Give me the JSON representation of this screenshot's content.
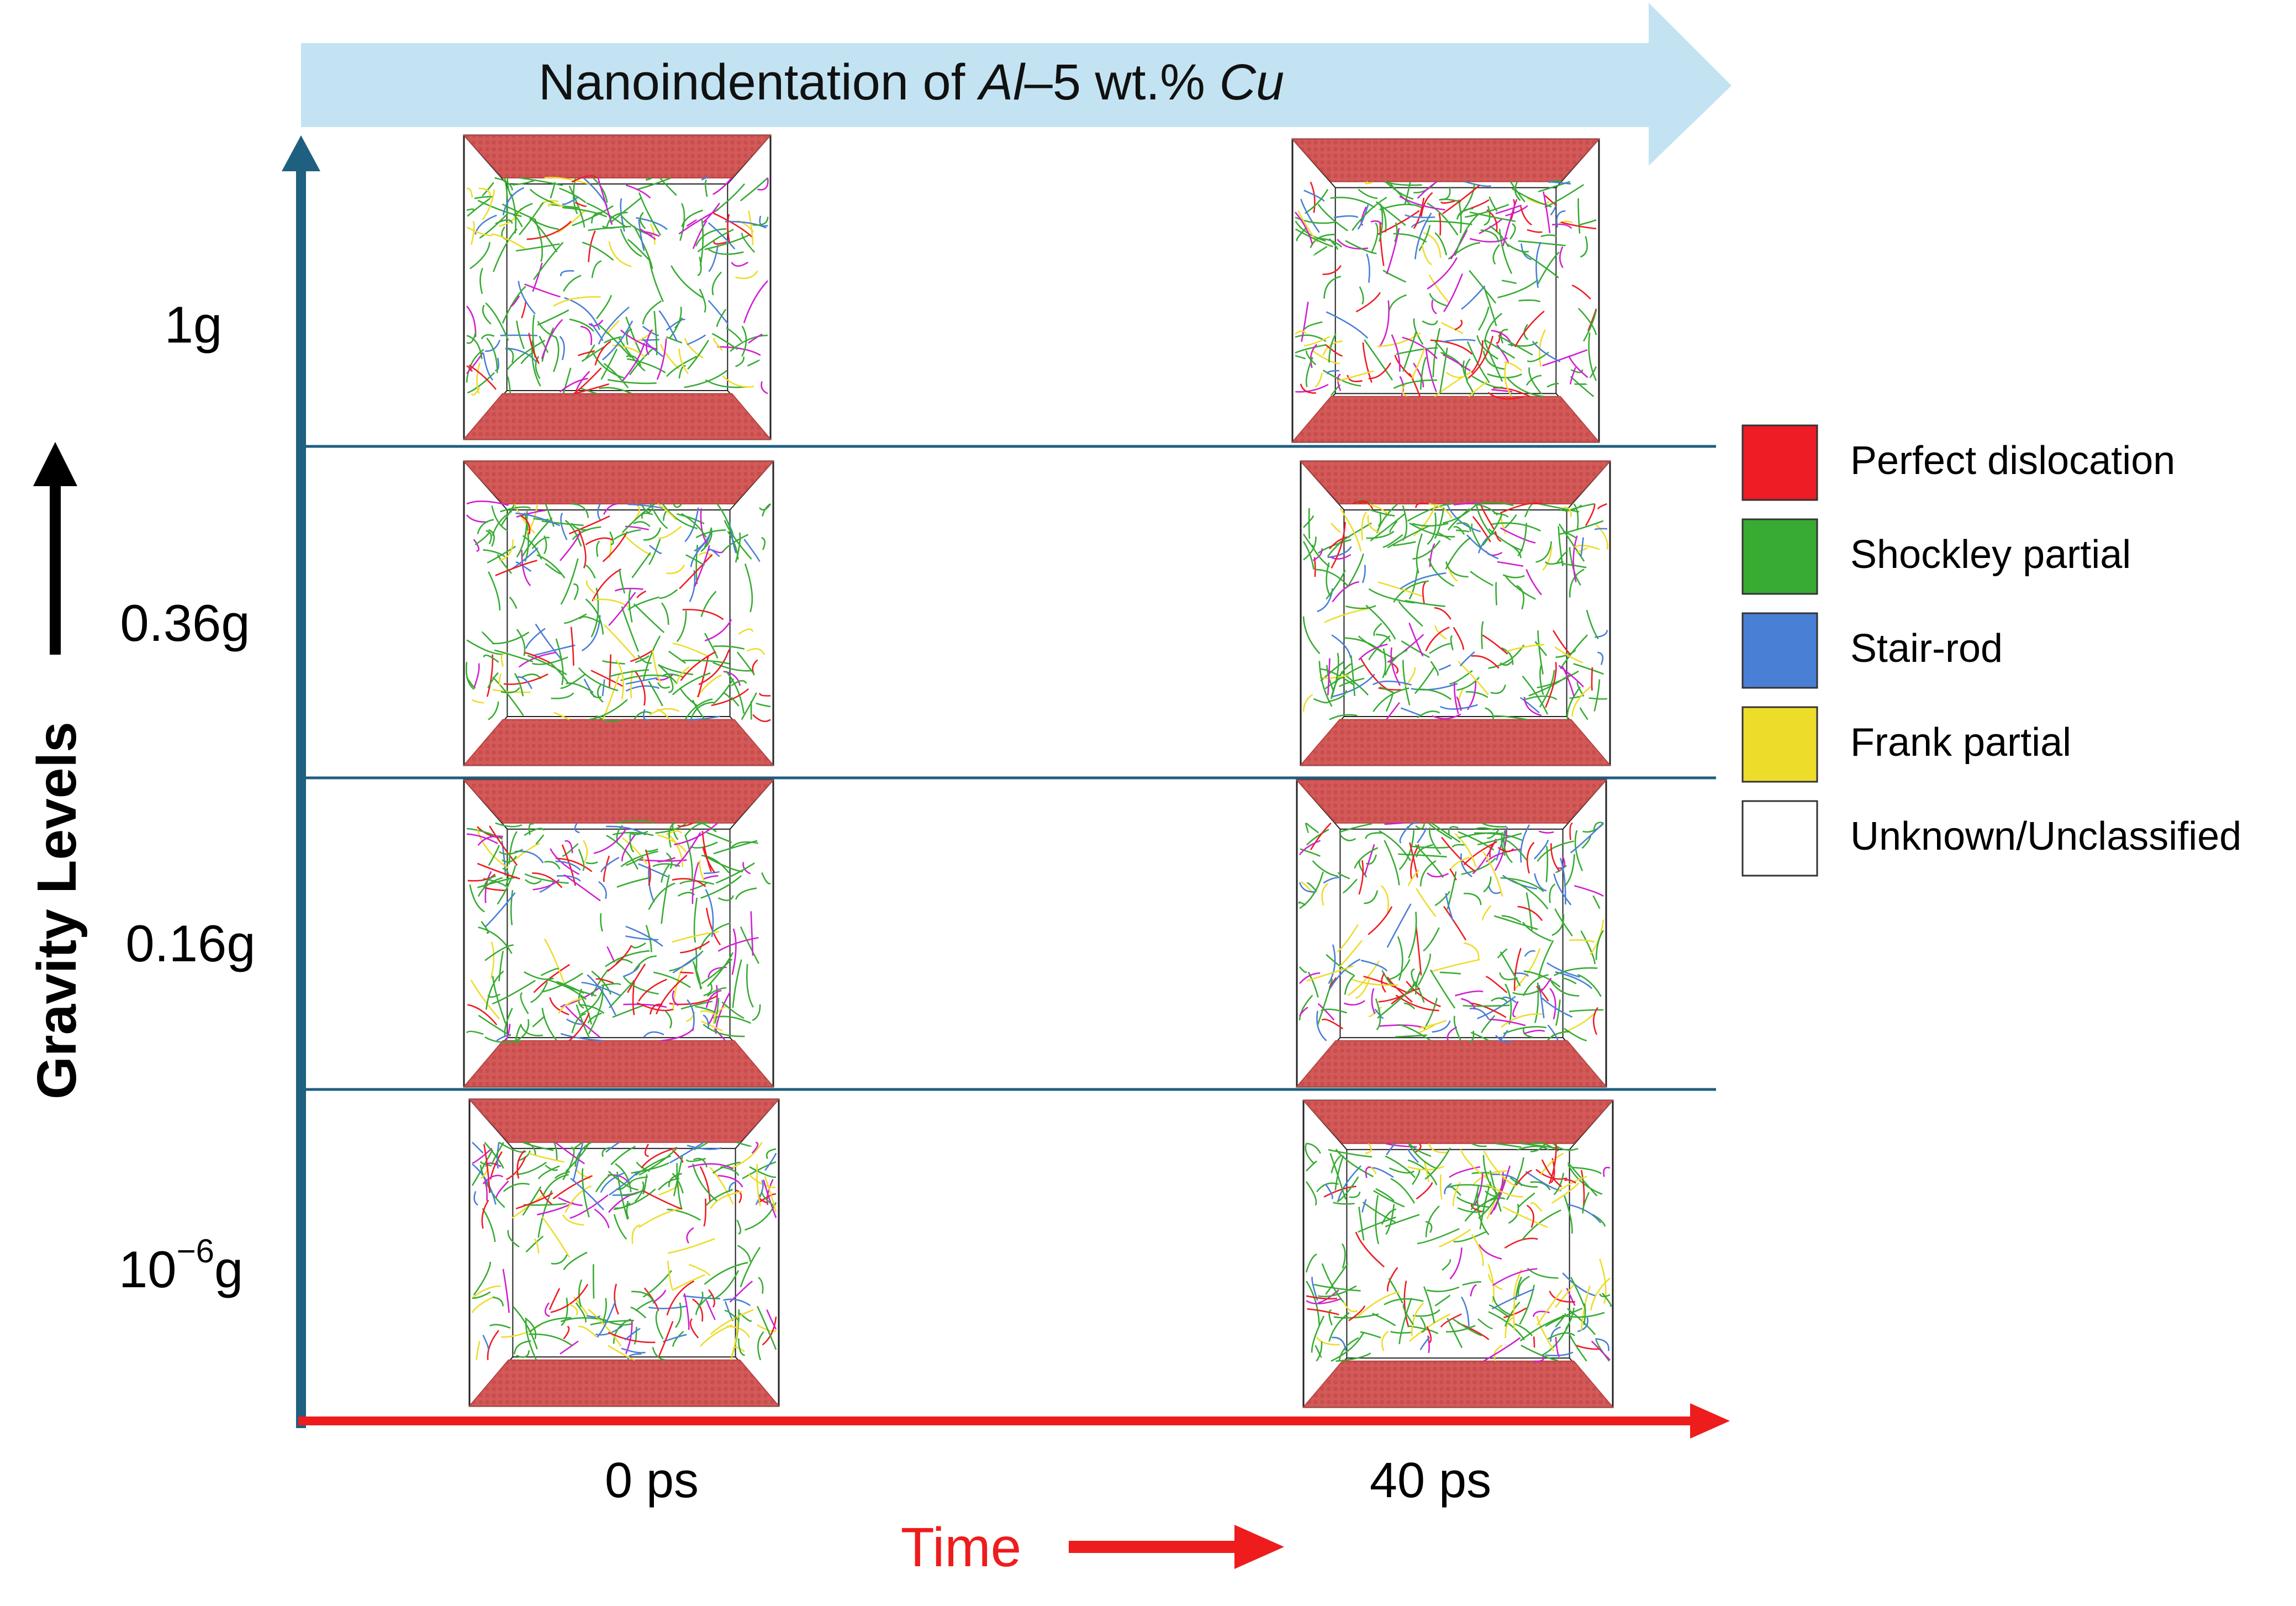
{
  "banner": {
    "prefix": "Nanoindentation of ",
    "alloy_base": "Al",
    "alloy_mid": "–5 wt.% ",
    "alloy_solute": "Cu",
    "color": "#c3e3f2"
  },
  "y_axis": {
    "label": "Gravity Levels",
    "color": "#1f5f7f"
  },
  "gravity_levels": [
    {
      "label_main": "1g",
      "label_base": "",
      "label_sup": "",
      "label_tail": ""
    },
    {
      "label_main": "0.36g",
      "label_base": "",
      "label_sup": "",
      "label_tail": ""
    },
    {
      "label_main": "0.16g",
      "label_base": "",
      "label_sup": "",
      "label_tail": ""
    },
    {
      "label_main": "",
      "label_base": "10",
      "label_sup": "−6",
      "label_tail": "g"
    }
  ],
  "x_axis": {
    "times": [
      "0 ps",
      "40 ps"
    ],
    "label": "Time",
    "color": "#ee1c1c"
  },
  "legend": [
    {
      "label": "Perfect dislocation",
      "color": "#ee1c24"
    },
    {
      "label": "Shockley partial",
      "color": "#38ab33"
    },
    {
      "label": "Stair-rod",
      "color": "#4a7fd6"
    },
    {
      "label": "Frank partial",
      "color": "#eedc2a"
    },
    {
      "label": "Unknown/Unclassified",
      "color": "#ffffff"
    }
  ],
  "colors": {
    "slab": "#d45a5a",
    "slab_dark": "#b84545",
    "box_edge": "#222222",
    "separator": "#1f5f7f"
  }
}
